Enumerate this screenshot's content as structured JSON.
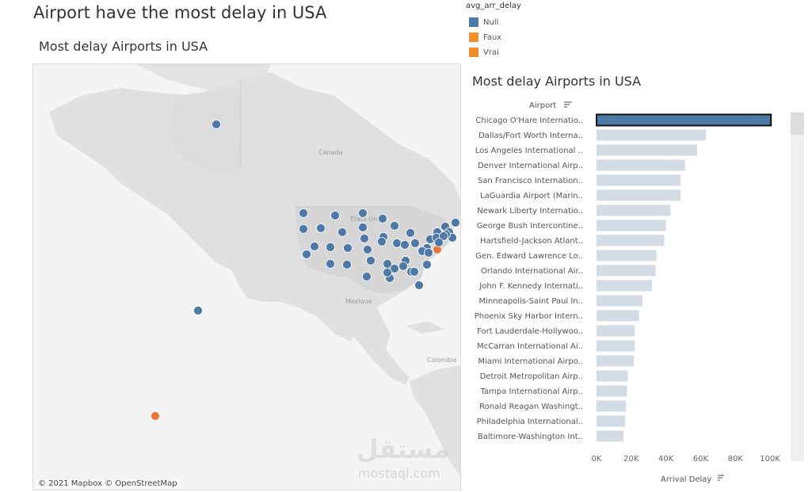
{
  "dashboard": {
    "title": "Airport have the most delay in USA"
  },
  "map": {
    "title": "Most delay Airports  in USA",
    "attribution": "© 2021 Mapbox  © OpenStreetMap",
    "labels": {
      "canada": "Canada",
      "usa": "États-Unis",
      "mexico": "Mexique",
      "colombia": "Colombie"
    },
    "colors": {
      "land": "#e0e0e0",
      "water": "#f4f4f4",
      "null": "#4e79a7",
      "vrai": "#e8763a"
    }
  },
  "legend": {
    "title": "avg_arr_delay",
    "items": [
      {
        "label": "Null",
        "color": "#4e79a7"
      },
      {
        "label": "Faux",
        "color": "#f28e2b"
      },
      {
        "label": "Vrai",
        "color": "#f28e2b"
      }
    ]
  },
  "watermark": {
    "line1": "مستقل",
    "line2": "mostaql.com"
  },
  "chart_data": {
    "type": "bar",
    "orientation": "horizontal",
    "title": "Most delay Airports  in USA",
    "category_header": "Airport",
    "xlabel": "Arrival Delay",
    "xlim": [
      0,
      110000
    ],
    "ticks": [
      {
        "value": 0,
        "label": "0K"
      },
      {
        "value": 20000,
        "label": "20K"
      },
      {
        "value": 40000,
        "label": "40K"
      },
      {
        "value": 60000,
        "label": "60K"
      },
      {
        "value": 80000,
        "label": "80K"
      },
      {
        "value": 100000,
        "label": "100K"
      }
    ],
    "highlight_index": 0,
    "colors": {
      "highlight": "#4e79a7",
      "bar": "#d3dbe5"
    },
    "categories": [
      "Chicago O'Hare Internatio..",
      "Dallas/Fort Worth Interna..",
      "Los Angeles International ..",
      "Denver International Airp..",
      "San Francisco Internation..",
      "LaGuardia Airport (Marin..",
      "Newark Liberty Internatio..",
      "George Bush Intercontine..",
      "Hartsfield-Jackson Atlant..",
      "Gen. Edward Lawrence Lo..",
      "Orlando International Air..",
      "John F. Kennedy Internati..",
      "Minneapolis-Saint Paul In..",
      "Phoenix Sky Harbor Intern..",
      "Fort Lauderdale-Hollywoo..",
      "McCarran International Ai..",
      "Miami International Airpo..",
      "Detroit Metropolitan Airp..",
      "Tampa International Airp..",
      "Ronald Reagan Washingt..",
      "Philadelphia International..",
      "Baltimore-Washington Int.."
    ],
    "values": [
      100500,
      63000,
      58000,
      51000,
      48500,
      48500,
      42500,
      40000,
      39000,
      34500,
      34000,
      32000,
      26500,
      24500,
      22000,
      22000,
      21500,
      18000,
      17500,
      17000,
      16500,
      15500
    ]
  }
}
